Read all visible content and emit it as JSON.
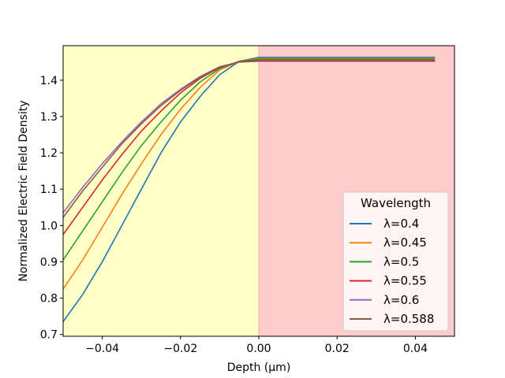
{
  "chart_data": {
    "type": "line",
    "xlabel": "Depth (μm)",
    "ylabel": "Normalized Electric Field Density",
    "xlim": [
      -0.05,
      0.05
    ],
    "ylim": [
      0.695,
      1.495
    ],
    "xticks": [
      -0.04,
      -0.02,
      0.0,
      0.02,
      0.04
    ],
    "xtick_labels": [
      "−0.04",
      "−0.02",
      "0.00",
      "0.02",
      "0.04"
    ],
    "yticks": [
      0.7,
      0.8,
      0.9,
      1.0,
      1.1,
      1.2,
      1.3,
      1.4
    ],
    "ytick_labels": [
      "0.7",
      "0.8",
      "0.9",
      "1.0",
      "1.1",
      "1.2",
      "1.3",
      "1.4"
    ],
    "grid": false,
    "regions": [
      {
        "x0": -0.05,
        "x1": 0.0,
        "color": "#ffffc8"
      },
      {
        "x0": 0.0,
        "x1": 0.05,
        "color": "#ffcccc"
      }
    ],
    "legend": {
      "title": "Wavelength",
      "placement": "lower-right"
    },
    "x": [
      -0.05,
      -0.045,
      -0.04,
      -0.035,
      -0.03,
      -0.025,
      -0.02,
      -0.015,
      -0.01,
      -0.005,
      0.0,
      0.045
    ],
    "series": [
      {
        "name": "λ=0.4",
        "color": "#1f77b4",
        "values": [
          0.735,
          0.81,
          0.9,
          1.0,
          1.1,
          1.2,
          1.285,
          1.355,
          1.415,
          1.452,
          1.463,
          1.463
        ]
      },
      {
        "name": "λ=0.45",
        "color": "#ff7f0e",
        "values": [
          0.825,
          0.905,
          0.995,
          1.085,
          1.17,
          1.25,
          1.32,
          1.38,
          1.428,
          1.452,
          1.46,
          1.46
        ]
      },
      {
        "name": "λ=0.5",
        "color": "#2ca02c",
        "values": [
          0.905,
          0.985,
          1.065,
          1.145,
          1.22,
          1.285,
          1.345,
          1.395,
          1.432,
          1.452,
          1.458,
          1.458
        ]
      },
      {
        "name": "λ=0.55",
        "color": "#d62728",
        "values": [
          0.975,
          1.05,
          1.125,
          1.195,
          1.26,
          1.315,
          1.365,
          1.405,
          1.435,
          1.451,
          1.455,
          1.455
        ]
      },
      {
        "name": "λ=0.6",
        "color": "#9467bd",
        "values": [
          1.035,
          1.105,
          1.17,
          1.23,
          1.285,
          1.335,
          1.375,
          1.41,
          1.437,
          1.45,
          1.452,
          1.452
        ]
      },
      {
        "name": "λ=0.588",
        "color": "#8c564b",
        "values": [
          1.022,
          1.095,
          1.16,
          1.225,
          1.28,
          1.33,
          1.372,
          1.408,
          1.436,
          1.45,
          1.453,
          1.453
        ]
      }
    ]
  }
}
